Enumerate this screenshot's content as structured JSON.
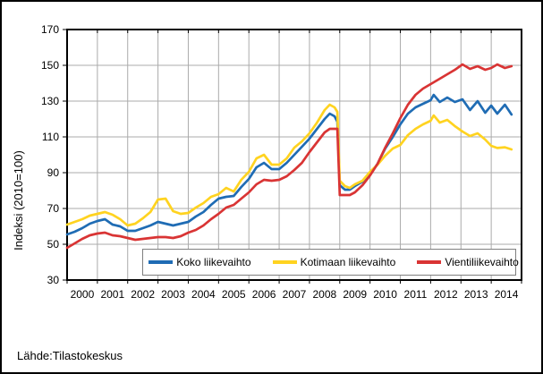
{
  "chart": {
    "y_axis_title": "Indeksi (2010=100)",
    "source": "Lähde:Tilastokeskus"
  },
  "chart_data": {
    "type": "line",
    "title": "",
    "xlabel": "",
    "ylabel": "Indeksi (2010=100)",
    "ylim": [
      30,
      170
    ],
    "ytick_step": 20,
    "xlim": [
      2000,
      2015
    ],
    "x_tick_labels": [
      "2000",
      "2001",
      "2002",
      "2003",
      "2004",
      "2005",
      "2006",
      "2007",
      "2008",
      "2009",
      "2010",
      "2011",
      "2012",
      "2013",
      "2014"
    ],
    "grid": true,
    "legend_position": "bottom-inside",
    "colors": {
      "grid": "#ABABAB",
      "axis": "#000000"
    },
    "source": "Lähde:Tilastokeskus",
    "x": [
      2000.0,
      2000.25,
      2000.5,
      2000.75,
      2001.0,
      2001.25,
      2001.5,
      2001.75,
      2002.0,
      2002.25,
      2002.5,
      2002.75,
      2003.0,
      2003.25,
      2003.5,
      2003.75,
      2004.0,
      2004.25,
      2004.5,
      2004.75,
      2005.0,
      2005.25,
      2005.5,
      2005.75,
      2006.0,
      2006.25,
      2006.5,
      2006.75,
      2007.0,
      2007.25,
      2007.5,
      2007.75,
      2008.0,
      2008.25,
      2008.5,
      2008.67,
      2008.83,
      2008.92,
      2009.0,
      2009.17,
      2009.33,
      2009.5,
      2009.75,
      2010.0,
      2010.25,
      2010.5,
      2010.75,
      2011.0,
      2011.25,
      2011.5,
      2011.75,
      2012.0,
      2012.1,
      2012.3,
      2012.55,
      2012.8,
      2013.05,
      2013.3,
      2013.55,
      2013.8,
      2014.0,
      2014.2,
      2014.45,
      2014.67
    ],
    "series": [
      {
        "name": "Koko liikevaihto",
        "color": "#1F6CB4",
        "values": [
          55.5,
          57,
          59,
          61.5,
          63,
          64,
          61,
          60,
          57.5,
          57.5,
          59,
          60.5,
          62.5,
          61.5,
          60.5,
          61.5,
          62.5,
          65.5,
          68,
          72,
          75.5,
          76.5,
          77,
          82,
          86.5,
          93,
          95.5,
          92,
          92,
          95.5,
          100,
          104.5,
          109,
          114.5,
          120,
          123,
          121.5,
          118.5,
          83,
          80.5,
          80.5,
          82.5,
          85,
          89,
          95,
          103.5,
          110,
          117,
          123,
          126.5,
          128.5,
          130.5,
          133.5,
          129.5,
          132,
          129.5,
          131,
          125,
          130,
          123.5,
          127.5,
          123,
          128,
          122.5
        ]
      },
      {
        "name": "Kotimaan liikevaihto",
        "color": "#FFD320",
        "values": [
          61,
          62.5,
          64,
          66,
          67,
          68,
          66.5,
          64,
          60.5,
          61.5,
          64.5,
          68,
          75,
          75.5,
          68.5,
          67,
          67.5,
          70.5,
          73,
          76.5,
          78,
          81.5,
          79.5,
          86,
          90.5,
          98,
          100,
          94.5,
          94.5,
          98,
          104,
          107.5,
          112,
          118,
          125,
          128,
          126.5,
          124,
          85.5,
          82.5,
          81.5,
          83.5,
          85.5,
          90.5,
          94.5,
          99.5,
          103.5,
          105.5,
          111,
          114.5,
          117,
          119,
          122,
          118,
          119.5,
          116,
          113,
          110.5,
          112,
          108.5,
          105,
          103.8,
          104.2,
          103
        ]
      },
      {
        "name": "Vientiliikevaihto",
        "color": "#D93434",
        "values": [
          48,
          50.5,
          53,
          55,
          56,
          56.5,
          55,
          54.5,
          53.5,
          52.5,
          53,
          53.5,
          54,
          54,
          53.5,
          54.5,
          56.5,
          58,
          60.5,
          64,
          67,
          70.5,
          72,
          75.5,
          79,
          83.5,
          86,
          85.5,
          86,
          88,
          91.5,
          95.5,
          101.5,
          107,
          112.5,
          114.5,
          114.5,
          114.5,
          77.5,
          77.5,
          77.5,
          79,
          83,
          88.5,
          95,
          104,
          112,
          120.5,
          128,
          133.5,
          137,
          139.5,
          140.5,
          142.5,
          145,
          147.5,
          150.5,
          148,
          149.5,
          147.5,
          148.5,
          150.5,
          148.5,
          149.5
        ]
      }
    ]
  }
}
